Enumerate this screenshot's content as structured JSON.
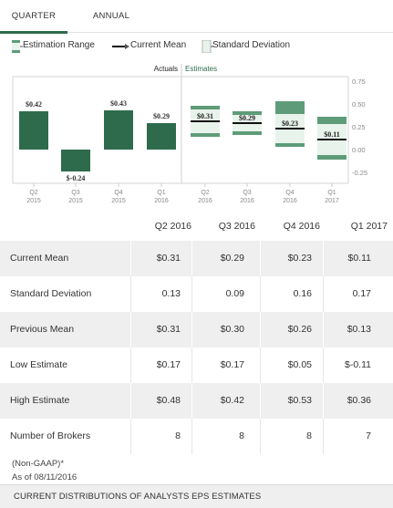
{
  "tabs": [
    {
      "label": "QUARTER",
      "active": true
    },
    {
      "label": "ANNUAL",
      "active": false
    }
  ],
  "legend": {
    "estimation_range": "Estimation Range",
    "current_mean": "Current Mean",
    "standard_deviation": "Standard Deviation"
  },
  "colors": {
    "bar": "#2e6b4d",
    "range_fill": "#e8f3ec",
    "range_cap": "#5e9c79",
    "accent_text": "#2e6b4d"
  },
  "chart_data": {
    "type": "bar",
    "section_labels": {
      "actuals": "Actuals",
      "estimates": "Estimates"
    },
    "categories": [
      {
        "period": "Q2",
        "year": "2015"
      },
      {
        "period": "Q3",
        "year": "2015"
      },
      {
        "period": "Q4",
        "year": "2015"
      },
      {
        "period": "Q1",
        "year": "2016"
      },
      {
        "period": "Q2",
        "year": "2016"
      },
      {
        "period": "Q3",
        "year": "2016"
      },
      {
        "period": "Q4",
        "year": "2016"
      },
      {
        "period": "Q1",
        "year": "2017"
      }
    ],
    "actuals": [
      {
        "value": 0.42,
        "label": "$0.42"
      },
      {
        "value": -0.24,
        "label": "$-0.24"
      },
      {
        "value": 0.43,
        "label": "$0.43"
      },
      {
        "value": 0.29,
        "label": "$0.29"
      }
    ],
    "estimates": [
      {
        "mean": 0.31,
        "label": "$0.31",
        "low": 0.17,
        "high": 0.48,
        "sd": 0.13
      },
      {
        "mean": 0.29,
        "label": "$0.29",
        "low": 0.17,
        "high": 0.42,
        "sd": 0.09
      },
      {
        "mean": 0.23,
        "label": "$0.23",
        "low": 0.05,
        "high": 0.53,
        "sd": 0.16
      },
      {
        "mean": 0.11,
        "label": "$0.11",
        "low": -0.11,
        "high": 0.36,
        "sd": 0.17
      }
    ],
    "y_ticks": [
      "0.75",
      "0.50",
      "0.25",
      "0.00",
      "-0.25"
    ],
    "ylim": [
      -0.3,
      0.8
    ]
  },
  "table": {
    "columns": [
      "Q2 2016",
      "Q3 2016",
      "Q4 2016",
      "Q1 2017"
    ],
    "rows": [
      {
        "label": "Current Mean",
        "values": [
          "$0.31",
          "$0.29",
          "$0.23",
          "$0.11"
        ]
      },
      {
        "label": "Standard Deviation",
        "values": [
          "0.13",
          "0.09",
          "0.16",
          "0.17"
        ]
      },
      {
        "label": "Previous Mean",
        "values": [
          "$0.31",
          "$0.30",
          "$0.26",
          "$0.13"
        ]
      },
      {
        "label": "Low Estimate",
        "values": [
          "$0.17",
          "$0.17",
          "$0.05",
          "$-0.11"
        ]
      },
      {
        "label": "High Estimate",
        "values": [
          "$0.48",
          "$0.42",
          "$0.53",
          "$0.36"
        ]
      },
      {
        "label": "Number of Brokers",
        "values": [
          "8",
          "8",
          "8",
          "7"
        ]
      }
    ]
  },
  "notes": {
    "basis": "(Non-GAAP)*",
    "as_of": "As of 08/11/2016"
  },
  "footer": "CURRENT DISTRIBUTIONS OF ANALYSTS EPS ESTIMATES"
}
